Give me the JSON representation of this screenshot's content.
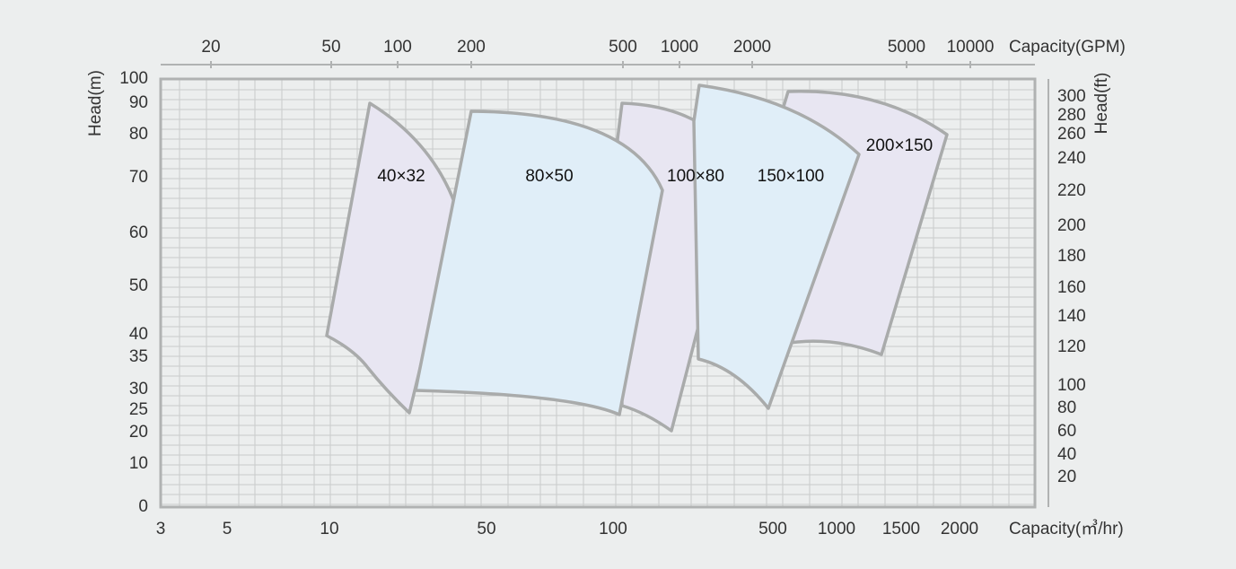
{
  "bottom_axis": {
    "title": "Capacity(㎥/hr)",
    "ticks": [
      3,
      5,
      10,
      50,
      100,
      500,
      1000,
      1500,
      2000
    ]
  },
  "top_axis": {
    "title": "Capacity(GPM)",
    "ticks": [
      20,
      50,
      100,
      200,
      500,
      1000,
      2000,
      5000,
      10000
    ]
  },
  "left_axis": {
    "title": "Head(m)",
    "ticks": [
      0,
      10,
      20,
      25,
      30,
      35,
      40,
      50,
      60,
      70,
      80,
      90,
      100
    ]
  },
  "right_axis": {
    "title": "Head(ft)",
    "ticks": [
      20,
      40,
      60,
      80,
      100,
      120,
      140,
      160,
      180,
      200,
      220,
      240,
      260,
      280,
      300
    ]
  },
  "regions": [
    {
      "label": "40×32"
    },
    {
      "label": "80×50"
    },
    {
      "label": "100×80"
    },
    {
      "label": "150×100"
    },
    {
      "label": "200×150"
    }
  ]
}
